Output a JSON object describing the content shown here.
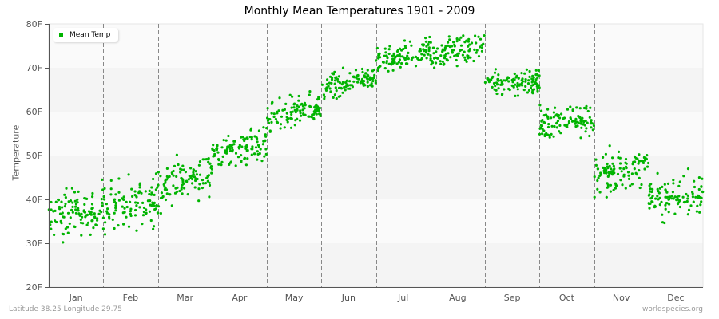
{
  "title": "Monthly Mean Temperatures 1901 - 2009",
  "footer": {
    "location": "Latitude 38.25 Longitude 29.75",
    "source": "worldspecies.org"
  },
  "colors": {
    "series": "#00b400",
    "band_light": "#fafafa",
    "band_dark": "#f4f4f4",
    "grid": "#888888",
    "axis": "#555555"
  },
  "chart_data": {
    "type": "scatter",
    "title": "Monthly Mean Temperatures 1901 - 2009",
    "xlabel": "",
    "ylabel": "Temperature",
    "ylim": [
      20,
      80
    ],
    "yticks": [
      "20F",
      "30F",
      "40F",
      "50F",
      "60F",
      "70F",
      "80F"
    ],
    "categories": [
      "Jan",
      "Feb",
      "Mar",
      "Apr",
      "May",
      "Jun",
      "Jul",
      "Aug",
      "Sep",
      "Oct",
      "Nov",
      "Dec"
    ],
    "legend": {
      "entries": [
        "Mean Temp"
      ],
      "position": "top-left"
    },
    "grid": {
      "vertical_dashed_month_separators": true,
      "horizontal_bands": true
    },
    "series": [
      {
        "name": "Mean Temp",
        "years": "1901-2009",
        "points_per_month": 109,
        "monthly_start_mean": [
          35.5,
          38.0,
          42.0,
          50.5,
          58.0,
          65.0,
          71.0,
          73.0,
          66.5,
          57.0,
          45.5,
          40.0
        ],
        "monthly_end_mean": [
          38.5,
          40.0,
          47.0,
          53.0,
          61.0,
          68.5,
          74.5,
          75.0,
          67.0,
          58.5,
          47.5,
          41.0
        ],
        "monthly_spread": [
          3.5,
          3.8,
          3.2,
          2.6,
          2.4,
          1.9,
          1.8,
          2.0,
          2.1,
          2.6,
          2.8,
          3.0
        ],
        "monthly_min": [
          29.5,
          28.0,
          35.5,
          45.0,
          53.5,
          61.5,
          68.0,
          69.0,
          62.0,
          50.5,
          40.5,
          33.0
        ],
        "monthly_max": [
          45.5,
          48.0,
          54.5,
          57.5,
          65.5,
          71.0,
          78.5,
          78.5,
          71.5,
          62.5,
          55.0,
          47.0
        ]
      }
    ]
  }
}
